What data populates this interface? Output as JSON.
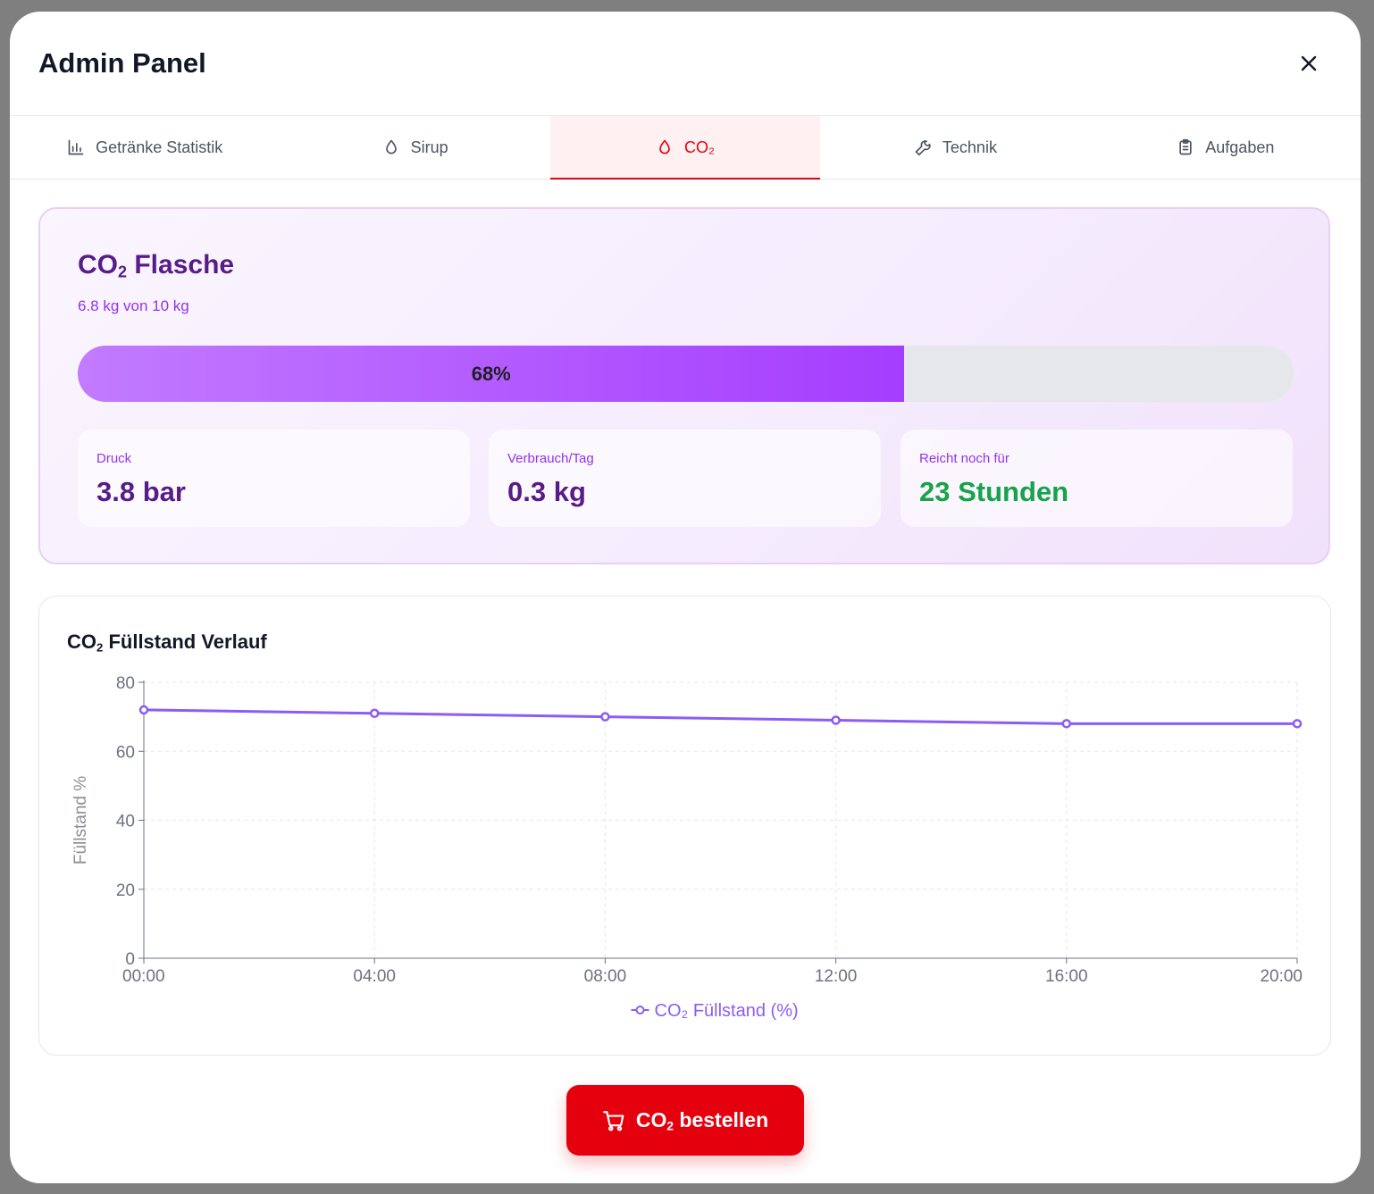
{
  "modal": {
    "title": "Admin Panel"
  },
  "tabs": [
    {
      "label": "Getränke Statistik",
      "icon": "bar-chart-icon"
    },
    {
      "label": "Sirup",
      "icon": "droplet-icon"
    },
    {
      "label": "CO₂",
      "icon": "droplet-icon",
      "active": true
    },
    {
      "label": "Technik",
      "icon": "wrench-icon"
    },
    {
      "label": "Aufgaben",
      "icon": "clipboard-icon"
    }
  ],
  "co2": {
    "title_main": "CO",
    "title_sub": "2",
    "title_rest": " Flasche",
    "capacity_text": "6.8 kg von 10 kg",
    "fill_percent": 68,
    "fill_label": "68%",
    "stats": [
      {
        "label": "Druck",
        "value": "3.8 bar"
      },
      {
        "label": "Verbrauch/Tag",
        "value": "0.3 kg"
      },
      {
        "label": "Reicht noch für",
        "value": "23 Stunden"
      }
    ]
  },
  "chart": {
    "title_main": "CO",
    "title_sub": "2",
    "title_rest": " Füllstand Verlauf"
  },
  "chart_data": {
    "type": "line",
    "x": [
      "00:00",
      "04:00",
      "08:00",
      "12:00",
      "16:00",
      "20:00"
    ],
    "series": [
      {
        "name": "CO₂ Füllstand (%)",
        "values": [
          72,
          71,
          70,
          69,
          68,
          68
        ]
      }
    ],
    "title": "CO₂ Füllstand Verlauf",
    "xlabel": "",
    "ylabel": "Füllstand %",
    "ylim": [
      0,
      80
    ],
    "yticks": [
      "0",
      "20",
      "40",
      "60",
      "80"
    ],
    "grid": true,
    "legend": "bottom-center",
    "colors": {
      "line": "#8b5cf6",
      "grid": "#e5e7eb",
      "axis": "#6b7280"
    }
  },
  "actions": {
    "order_label_main": "CO",
    "order_label_sub": "2",
    "order_label_rest": " bestellen"
  },
  "colors": {
    "accent": "#e5000e",
    "purple_dark": "#581c87",
    "purple": "#9333ea",
    "green": "#16a34a"
  }
}
